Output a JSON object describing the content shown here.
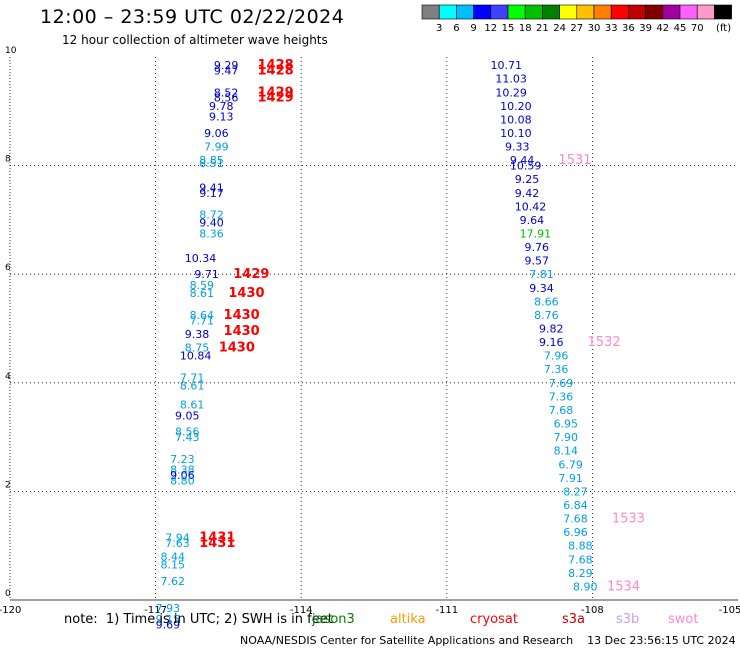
{
  "header": {
    "title": "12:00 – 23:59 UTC 02/22/2024",
    "subtitle": "12 hour collection of altimeter wave heights"
  },
  "colorbar": {
    "bins": [
      {
        "label": "",
        "color": "#808080"
      },
      {
        "label": "3",
        "color": "#00ffff"
      },
      {
        "label": "6",
        "color": "#00bfff"
      },
      {
        "label": "9",
        "color": "#0000ff"
      },
      {
        "label": "12",
        "color": "#4040ff"
      },
      {
        "label": "15",
        "color": "#00ff00"
      },
      {
        "label": "18",
        "color": "#00c000"
      },
      {
        "label": "21",
        "color": "#008000"
      },
      {
        "label": "24",
        "color": "#ffff00"
      },
      {
        "label": "27",
        "color": "#ffc000"
      },
      {
        "label": "30",
        "color": "#ff8000"
      },
      {
        "label": "33",
        "color": "#ff0000"
      },
      {
        "label": "36",
        "color": "#c00000"
      },
      {
        "label": "39",
        "color": "#800000"
      },
      {
        "label": "42",
        "color": "#a000a0"
      },
      {
        "label": "45",
        "color": "#ff60ff"
      },
      {
        "label": "70",
        "color": "#ff99cc"
      },
      {
        "label": "",
        "color": "#000000"
      }
    ],
    "unit": "(ft)"
  },
  "chart_data": {
    "type": "scatter",
    "title": "12:00 – 23:59 UTC 02/22/2024",
    "subtitle": "12 hour collection of altimeter wave heights",
    "xlim": [
      -120,
      -105
    ],
    "ylim": [
      0,
      10
    ],
    "x_ticks": [
      "-120",
      "-117",
      "-114",
      "-111",
      "-108",
      "-105"
    ],
    "y_ticks": [
      "0",
      "2",
      "4",
      "6",
      "8",
      "10"
    ],
    "grid": true,
    "colors": {
      "dark_blue": "#0000cc",
      "light_blue": "#00a0e0",
      "red": "#ff0000",
      "green": "#00c000",
      "pink": "#ff88cc"
    },
    "series": [
      {
        "points": [
          {
            "x": -115.8,
            "y": 9.85,
            "v": "9.29",
            "c": "dark_blue"
          },
          {
            "x": -115.8,
            "y": 9.75,
            "v": "9.47",
            "c": "dark_blue"
          },
          {
            "x": -114.9,
            "y": 9.85,
            "v": "1428",
            "c": "red"
          },
          {
            "x": -114.9,
            "y": 9.75,
            "v": "1428",
            "c": "red"
          },
          {
            "x": -115.8,
            "y": 9.35,
            "v": "8.52",
            "c": "dark_blue"
          },
          {
            "x": -115.8,
            "y": 9.25,
            "v": "8.56",
            "c": "dark_blue"
          },
          {
            "x": -114.9,
            "y": 9.35,
            "v": "1429",
            "c": "red"
          },
          {
            "x": -114.9,
            "y": 9.25,
            "v": "1429",
            "c": "red"
          },
          {
            "x": -115.9,
            "y": 9.1,
            "v": "9.78",
            "c": "dark_blue"
          },
          {
            "x": -115.9,
            "y": 8.9,
            "v": "9.13",
            "c": "dark_blue"
          },
          {
            "x": -116.0,
            "y": 8.6,
            "v": "9.06",
            "c": "dark_blue"
          },
          {
            "x": -116.0,
            "y": 8.35,
            "v": "7.99",
            "c": "light_blue"
          },
          {
            "x": -116.1,
            "y": 8.1,
            "v": "8.85",
            "c": "light_blue"
          },
          {
            "x": -116.1,
            "y": 8.05,
            "v": "8.51",
            "c": "light_blue"
          },
          {
            "x": -116.1,
            "y": 7.6,
            "v": "9.41",
            "c": "dark_blue"
          },
          {
            "x": -116.1,
            "y": 7.5,
            "v": "9.17",
            "c": "dark_blue"
          },
          {
            "x": -116.1,
            "y": 7.1,
            "v": "8.72",
            "c": "light_blue"
          },
          {
            "x": -116.1,
            "y": 6.95,
            "v": "9.40",
            "c": "dark_blue"
          },
          {
            "x": -116.1,
            "y": 6.75,
            "v": "8.36",
            "c": "light_blue"
          },
          {
            "x": -116.4,
            "y": 6.3,
            "v": "10.34",
            "c": "dark_blue"
          },
          {
            "x": -116.2,
            "y": 6.0,
            "v": "9.71",
            "c": "dark_blue"
          },
          {
            "x": -115.4,
            "y": 6.0,
            "v": "1429",
            "c": "red"
          },
          {
            "x": -116.3,
            "y": 5.8,
            "v": "8.59",
            "c": "light_blue"
          },
          {
            "x": -116.3,
            "y": 5.65,
            "v": "8.61",
            "c": "light_blue"
          },
          {
            "x": -115.5,
            "y": 5.65,
            "v": "1430",
            "c": "red"
          },
          {
            "x": -116.3,
            "y": 5.25,
            "v": "8.64",
            "c": "light_blue"
          },
          {
            "x": -116.3,
            "y": 5.15,
            "v": "7.71",
            "c": "light_blue"
          },
          {
            "x": -115.6,
            "y": 5.25,
            "v": "1430",
            "c": "red"
          },
          {
            "x": -116.4,
            "y": 4.9,
            "v": "9.38",
            "c": "dark_blue"
          },
          {
            "x": -115.6,
            "y": 4.95,
            "v": "1430",
            "c": "red"
          },
          {
            "x": -116.4,
            "y": 4.65,
            "v": "8.75",
            "c": "light_blue"
          },
          {
            "x": -116.5,
            "y": 4.5,
            "v": "10.84",
            "c": "dark_blue"
          },
          {
            "x": -115.7,
            "y": 4.65,
            "v": "1430",
            "c": "red"
          },
          {
            "x": -116.5,
            "y": 4.1,
            "v": "7.71",
            "c": "light_blue"
          },
          {
            "x": -116.5,
            "y": 3.95,
            "v": "8.61",
            "c": "light_blue"
          },
          {
            "x": -116.5,
            "y": 3.6,
            "v": "8.61",
            "c": "light_blue"
          },
          {
            "x": -116.6,
            "y": 3.4,
            "v": "9.05",
            "c": "dark_blue"
          },
          {
            "x": -116.6,
            "y": 3.1,
            "v": "8.56",
            "c": "light_blue"
          },
          {
            "x": -116.6,
            "y": 3.0,
            "v": "7.43",
            "c": "light_blue"
          },
          {
            "x": -116.7,
            "y": 2.6,
            "v": "7.23",
            "c": "light_blue"
          },
          {
            "x": -116.7,
            "y": 2.4,
            "v": "8.38",
            "c": "light_blue"
          },
          {
            "x": -116.7,
            "y": 2.3,
            "v": "9.06",
            "c": "dark_blue"
          },
          {
            "x": -116.7,
            "y": 2.2,
            "v": "8.80",
            "c": "light_blue"
          },
          {
            "x": -116.8,
            "y": 1.15,
            "v": "7.94",
            "c": "light_blue"
          },
          {
            "x": -116.8,
            "y": 1.05,
            "v": "7.63",
            "c": "light_blue"
          },
          {
            "x": -116.1,
            "y": 1.15,
            "v": "1431",
            "c": "red"
          },
          {
            "x": -116.1,
            "y": 1.05,
            "v": "1431",
            "c": "red"
          },
          {
            "x": -116.9,
            "y": 0.8,
            "v": "8.44",
            "c": "light_blue"
          },
          {
            "x": -116.9,
            "y": 0.65,
            "v": "8.15",
            "c": "light_blue"
          },
          {
            "x": -116.9,
            "y": 0.35,
            "v": "7.62",
            "c": "light_blue"
          },
          {
            "x": -117.0,
            "y": -0.15,
            "v": "7.93",
            "c": "light_blue"
          },
          {
            "x": -117.0,
            "y": -0.35,
            "v": "9.15",
            "c": "light_blue"
          },
          {
            "x": -117.0,
            "y": -0.45,
            "v": "9.69",
            "c": "dark_blue"
          },
          {
            "x": -110.1,
            "y": 9.85,
            "v": "10.71",
            "c": "dark_blue"
          },
          {
            "x": -110.0,
            "y": 9.6,
            "v": "11.03",
            "c": "dark_blue"
          },
          {
            "x": -110.0,
            "y": 9.35,
            "v": "10.29",
            "c": "dark_blue"
          },
          {
            "x": -109.9,
            "y": 9.1,
            "v": "10.20",
            "c": "dark_blue"
          },
          {
            "x": -109.9,
            "y": 8.85,
            "v": "10.08",
            "c": "dark_blue"
          },
          {
            "x": -109.9,
            "y": 8.6,
            "v": "10.10",
            "c": "dark_blue"
          },
          {
            "x": -109.8,
            "y": 8.35,
            "v": "9.33",
            "c": "dark_blue"
          },
          {
            "x": -109.7,
            "y": 8.1,
            "v": "9.44",
            "c": "dark_blue"
          },
          {
            "x": -108.7,
            "y": 8.1,
            "v": "1531",
            "c": "pink"
          },
          {
            "x": -109.7,
            "y": 8.0,
            "v": "10.59",
            "c": "dark_blue"
          },
          {
            "x": -109.6,
            "y": 7.75,
            "v": "9.25",
            "c": "dark_blue"
          },
          {
            "x": -109.6,
            "y": 7.5,
            "v": "9.42",
            "c": "dark_blue"
          },
          {
            "x": -109.6,
            "y": 7.25,
            "v": "10.42",
            "c": "dark_blue"
          },
          {
            "x": -109.5,
            "y": 7.0,
            "v": "9.64",
            "c": "dark_blue"
          },
          {
            "x": -109.5,
            "y": 6.75,
            "v": "17.91",
            "c": "green"
          },
          {
            "x": -109.4,
            "y": 6.5,
            "v": "9.76",
            "c": "dark_blue"
          },
          {
            "x": -109.4,
            "y": 6.25,
            "v": "9.57",
            "c": "dark_blue"
          },
          {
            "x": -109.3,
            "y": 6.0,
            "v": "7.81",
            "c": "light_blue"
          },
          {
            "x": -109.3,
            "y": 5.75,
            "v": "9.34",
            "c": "dark_blue"
          },
          {
            "x": -109.2,
            "y": 5.5,
            "v": "8.66",
            "c": "light_blue"
          },
          {
            "x": -109.2,
            "y": 5.25,
            "v": "8.76",
            "c": "light_blue"
          },
          {
            "x": -109.1,
            "y": 5.0,
            "v": "9.82",
            "c": "dark_blue"
          },
          {
            "x": -109.1,
            "y": 4.75,
            "v": "9.16",
            "c": "dark_blue"
          },
          {
            "x": -108.1,
            "y": 4.75,
            "v": "1532",
            "c": "pink"
          },
          {
            "x": -109.0,
            "y": 4.5,
            "v": "7.96",
            "c": "light_blue"
          },
          {
            "x": -109.0,
            "y": 4.25,
            "v": "7.36",
            "c": "light_blue"
          },
          {
            "x": -108.9,
            "y": 4.0,
            "v": "7.69",
            "c": "light_blue"
          },
          {
            "x": -108.9,
            "y": 3.75,
            "v": "7.36",
            "c": "light_blue"
          },
          {
            "x": -108.9,
            "y": 3.5,
            "v": "7.68",
            "c": "light_blue"
          },
          {
            "x": -108.8,
            "y": 3.25,
            "v": "6.95",
            "c": "light_blue"
          },
          {
            "x": -108.8,
            "y": 3.0,
            "v": "7.90",
            "c": "light_blue"
          },
          {
            "x": -108.8,
            "y": 2.75,
            "v": "8.14",
            "c": "light_blue"
          },
          {
            "x": -108.7,
            "y": 2.5,
            "v": "6.79",
            "c": "light_blue"
          },
          {
            "x": -108.7,
            "y": 2.25,
            "v": "7.91",
            "c": "light_blue"
          },
          {
            "x": -108.6,
            "y": 2.0,
            "v": "8.27",
            "c": "light_blue"
          },
          {
            "x": -108.6,
            "y": 1.75,
            "v": "6.84",
            "c": "light_blue"
          },
          {
            "x": -108.6,
            "y": 1.5,
            "v": "7.68",
            "c": "light_blue"
          },
          {
            "x": -107.6,
            "y": 1.5,
            "v": "1533",
            "c": "pink"
          },
          {
            "x": -108.6,
            "y": 1.25,
            "v": "6.96",
            "c": "light_blue"
          },
          {
            "x": -108.5,
            "y": 1.0,
            "v": "8.88",
            "c": "light_blue"
          },
          {
            "x": -108.5,
            "y": 0.75,
            "v": "7.68",
            "c": "light_blue"
          },
          {
            "x": -108.5,
            "y": 0.5,
            "v": "8.29",
            "c": "light_blue"
          },
          {
            "x": -108.4,
            "y": 0.25,
            "v": "8.90",
            "c": "light_blue"
          },
          {
            "x": -107.7,
            "y": 0.25,
            "v": "1534",
            "c": "pink"
          }
        ]
      }
    ]
  },
  "footer": {
    "note": "note:  1) Time is in UTC; 2) SWH is in feet",
    "credit": "NOAA/NESDIS Center for Satellite Applications and Research    13 Dec 23:56:15 UTC 2024"
  },
  "legend": [
    {
      "label": "jason3",
      "color": "#008000"
    },
    {
      "label": "altika",
      "color": "#ff9900"
    },
    {
      "label": "cryosat",
      "color": "#ff0000"
    },
    {
      "label": "s3a",
      "color": "#cc0000"
    },
    {
      "label": "s3b",
      "color": "#c8a0e8"
    },
    {
      "label": "swot",
      "color": "#ff88cc"
    }
  ]
}
